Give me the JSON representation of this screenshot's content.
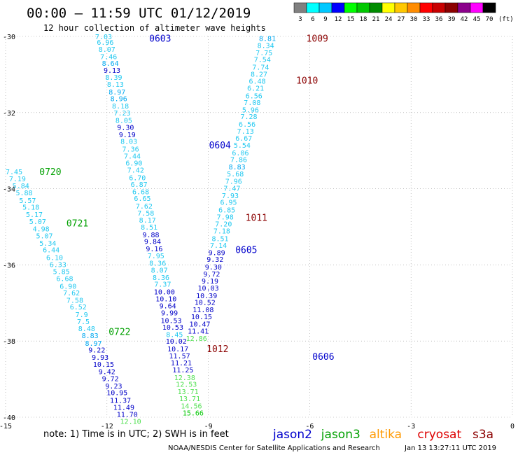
{
  "header": {
    "title": "00:00 – 11:59 UTC 01/12/2019",
    "subtitle": "12 hour collection of altimeter wave heights"
  },
  "colorbar": {
    "unit": "(ft)",
    "labels": [
      "3",
      "6",
      "9",
      "12",
      "15",
      "18",
      "21",
      "24",
      "27",
      "30",
      "33",
      "36",
      "39",
      "42",
      "45",
      "70"
    ],
    "colors": [
      "#808080",
      "#00ffff",
      "#00c8ff",
      "#0000ff",
      "#00ff00",
      "#00c800",
      "#008c00",
      "#ffff00",
      "#ffc800",
      "#ff8c00",
      "#ff0000",
      "#c80000",
      "#8b0000",
      "#8b008b",
      "#ff00ff",
      "#000000"
    ]
  },
  "footer": {
    "note": "note:  1) Time is in UTC;  2) SWH is in feet",
    "credit": "NOAA/NESDIS Center for Satellite Applications and Research",
    "timestamp": "Jan 13 13:27:11 UTC 2019",
    "satellites": [
      {
        "name": "jason2",
        "color": "#0000cc"
      },
      {
        "name": "jason3",
        "color": "#00a000"
      },
      {
        "name": "altika",
        "color": "#ff9900"
      },
      {
        "name": "cryosat",
        "color": "#dd0000"
      },
      {
        "name": "s3a",
        "color": "#8b0000"
      }
    ]
  },
  "chart_data": {
    "type": "scatter",
    "xlim": [
      -15,
      0
    ],
    "ylim": [
      -40,
      -30
    ],
    "x_ticks": [
      "-15",
      "-12",
      "-9",
      "-6",
      "-3",
      "0"
    ],
    "y_ticks": [
      "-30",
      "-32",
      "-34",
      "-36",
      "-38",
      "-40"
    ],
    "grid": true,
    "unit": "ft",
    "tracks": [
      {
        "satellite": "jason2",
        "color": "#0000cc",
        "time_labels": [
          {
            "text": "0603",
            "lon": -10.75,
            "lat": -30.05
          },
          {
            "text": "0604",
            "lon": -8.98,
            "lat": -32.85
          },
          {
            "text": "0605",
            "lon": -8.2,
            "lat": -35.6
          },
          {
            "text": "0606",
            "lon": -5.92,
            "lat": -38.4
          }
        ],
        "points": [
          {
            "lon": -12.1,
            "lat": -30.0,
            "value": "7.03"
          },
          {
            "lon": -12.05,
            "lat": -30.15,
            "value": "6.96"
          },
          {
            "lon": -12.0,
            "lat": -30.33,
            "value": "8.07"
          },
          {
            "lon": -11.95,
            "lat": -30.52,
            "value": "7.46"
          },
          {
            "lon": -11.9,
            "lat": -30.7,
            "value": "8.64"
          },
          {
            "lon": -11.85,
            "lat": -30.88,
            "value": "9.13"
          },
          {
            "lon": -11.8,
            "lat": -31.07,
            "value": "8.39"
          },
          {
            "lon": -11.75,
            "lat": -31.25,
            "value": "8.13"
          },
          {
            "lon": -11.7,
            "lat": -31.45,
            "value": "8.97"
          },
          {
            "lon": -11.65,
            "lat": -31.63,
            "value": "8.96"
          },
          {
            "lon": -11.6,
            "lat": -31.82,
            "value": "8.18"
          },
          {
            "lon": -11.55,
            "lat": -32.0,
            "value": "7.23"
          },
          {
            "lon": -11.5,
            "lat": -32.2,
            "value": "8.05"
          },
          {
            "lon": -11.45,
            "lat": -32.38,
            "value": "9.30"
          },
          {
            "lon": -11.4,
            "lat": -32.57,
            "value": "9.19"
          },
          {
            "lon": -11.35,
            "lat": -32.75,
            "value": "8.03"
          },
          {
            "lon": -11.3,
            "lat": -32.95,
            "value": "7.36"
          },
          {
            "lon": -11.25,
            "lat": -33.13,
            "value": "7.44"
          },
          {
            "lon": -11.2,
            "lat": -33.32,
            "value": "6.90"
          },
          {
            "lon": -11.15,
            "lat": -33.5,
            "value": "7.42"
          },
          {
            "lon": -11.1,
            "lat": -33.7,
            "value": "6.70"
          },
          {
            "lon": -11.05,
            "lat": -33.88,
            "value": "6.87"
          },
          {
            "lon": -11.0,
            "lat": -34.07,
            "value": "6.68"
          },
          {
            "lon": -10.95,
            "lat": -34.25,
            "value": "6.65"
          },
          {
            "lon": -10.9,
            "lat": -34.45,
            "value": "7.62"
          },
          {
            "lon": -10.85,
            "lat": -34.63,
            "value": "7.58"
          },
          {
            "lon": -10.8,
            "lat": -34.82,
            "value": "8.17"
          },
          {
            "lon": -10.75,
            "lat": -35.0,
            "value": "8.51"
          },
          {
            "lon": -10.7,
            "lat": -35.2,
            "value": "9.88"
          },
          {
            "lon": -10.65,
            "lat": -35.38,
            "value": "9.84"
          },
          {
            "lon": -10.6,
            "lat": -35.57,
            "value": "9.16"
          },
          {
            "lon": -10.55,
            "lat": -35.75,
            "value": "7.95"
          },
          {
            "lon": -10.5,
            "lat": -35.95,
            "value": "8.36"
          },
          {
            "lon": -10.45,
            "lat": -36.13,
            "value": "8.07"
          },
          {
            "lon": -10.4,
            "lat": -36.32,
            "value": "8.36"
          },
          {
            "lon": -10.35,
            "lat": -36.5,
            "value": "7.37"
          },
          {
            "lon": -10.3,
            "lat": -36.7,
            "value": "10.00"
          },
          {
            "lon": -10.25,
            "lat": -36.88,
            "value": "10.10"
          },
          {
            "lon": -10.2,
            "lat": -37.07,
            "value": "9.64"
          },
          {
            "lon": -10.15,
            "lat": -37.25,
            "value": "9.99"
          },
          {
            "lon": -10.1,
            "lat": -37.45,
            "value": "10.53"
          },
          {
            "lon": -10.05,
            "lat": -37.63,
            "value": "10.53"
          },
          {
            "lon": -10.0,
            "lat": -37.82,
            "value": "8.45"
          },
          {
            "lon": -9.95,
            "lat": -38.0,
            "value": "10.02"
          },
          {
            "lon": -9.9,
            "lat": -38.2,
            "value": "10.17"
          },
          {
            "lon": -9.85,
            "lat": -38.38,
            "value": "11.57"
          },
          {
            "lon": -9.8,
            "lat": -38.57,
            "value": "11.21"
          },
          {
            "lon": -9.75,
            "lat": -38.75,
            "value": "11.25"
          },
          {
            "lon": -9.7,
            "lat": -38.95,
            "value": "12.38"
          },
          {
            "lon": -9.65,
            "lat": -39.13,
            "value": "12.53"
          },
          {
            "lon": -9.6,
            "lat": -39.32,
            "value": "13.71"
          },
          {
            "lon": -9.55,
            "lat": -39.5,
            "value": "13.71"
          },
          {
            "lon": -9.5,
            "lat": -39.7,
            "value": "14.56"
          },
          {
            "lon": -9.45,
            "lat": -39.88,
            "value": "15.66"
          }
        ]
      },
      {
        "satellite": "jason3",
        "color": "#00a000",
        "time_labels": [
          {
            "text": "0720",
            "lon": -14.0,
            "lat": -33.55
          },
          {
            "text": "0721",
            "lon": -13.2,
            "lat": -34.9
          },
          {
            "text": "0722",
            "lon": -11.95,
            "lat": -37.75
          }
        ],
        "points": [
          {
            "lon": -14.75,
            "lat": -33.55,
            "value": "7.45"
          },
          {
            "lon": -14.65,
            "lat": -33.73,
            "value": "7.19"
          },
          {
            "lon": -14.55,
            "lat": -33.92,
            "value": "5.84"
          },
          {
            "lon": -14.45,
            "lat": -34.1,
            "value": "5.88"
          },
          {
            "lon": -14.35,
            "lat": -34.3,
            "value": "5.57"
          },
          {
            "lon": -14.25,
            "lat": -34.48,
            "value": "5.18"
          },
          {
            "lon": -14.15,
            "lat": -34.67,
            "value": "5.17"
          },
          {
            "lon": -14.05,
            "lat": -34.85,
            "value": "5.07"
          },
          {
            "lon": -13.95,
            "lat": -35.05,
            "value": "4.98"
          },
          {
            "lon": -13.85,
            "lat": -35.23,
            "value": "5.07"
          },
          {
            "lon": -13.75,
            "lat": -35.42,
            "value": "5.34"
          },
          {
            "lon": -13.65,
            "lat": -35.6,
            "value": "6.44"
          },
          {
            "lon": -13.55,
            "lat": -35.8,
            "value": "6.10"
          },
          {
            "lon": -13.45,
            "lat": -35.98,
            "value": "6.33"
          },
          {
            "lon": -13.35,
            "lat": -36.17,
            "value": "5.85"
          },
          {
            "lon": -13.25,
            "lat": -36.35,
            "value": "6.68"
          },
          {
            "lon": -13.15,
            "lat": -36.55,
            "value": "6.90"
          },
          {
            "lon": -13.05,
            "lat": -36.73,
            "value": "7.62"
          },
          {
            "lon": -12.95,
            "lat": -36.92,
            "value": "7.58"
          },
          {
            "lon": -12.85,
            "lat": -37.1,
            "value": "6.52"
          },
          {
            "lon": -12.75,
            "lat": -37.3,
            "value": "7.9"
          },
          {
            "lon": -12.7,
            "lat": -37.48,
            "value": "7.5"
          },
          {
            "lon": -12.6,
            "lat": -37.67,
            "value": "8.48"
          },
          {
            "lon": -12.5,
            "lat": -37.85,
            "value": "8.83"
          },
          {
            "lon": -12.4,
            "lat": -38.05,
            "value": "8.97"
          },
          {
            "lon": -12.3,
            "lat": -38.23,
            "value": "9.22"
          },
          {
            "lon": -12.2,
            "lat": -38.42,
            "value": "9.93"
          },
          {
            "lon": -12.1,
            "lat": -38.6,
            "value": "10.15"
          },
          {
            "lon": -12.0,
            "lat": -38.8,
            "value": "9.42"
          },
          {
            "lon": -11.9,
            "lat": -38.98,
            "value": "9.72"
          },
          {
            "lon": -11.8,
            "lat": -39.17,
            "value": "9.23"
          },
          {
            "lon": -11.7,
            "lat": -39.35,
            "value": "10.95"
          },
          {
            "lon": -11.6,
            "lat": -39.55,
            "value": "11.37"
          },
          {
            "lon": -11.5,
            "lat": -39.73,
            "value": "11.49"
          },
          {
            "lon": -11.4,
            "lat": -39.92,
            "value": "11.70"
          },
          {
            "lon": -11.3,
            "lat": -40.1,
            "value": "12.10"
          }
        ]
      },
      {
        "satellite": "s3a",
        "color": "#8b0000",
        "time_labels": [
          {
            "text": "1009",
            "lon": -6.1,
            "lat": -30.05
          },
          {
            "text": "1010",
            "lon": -6.4,
            "lat": -31.15
          },
          {
            "text": "1011",
            "lon": -7.9,
            "lat": -34.75
          },
          {
            "text": "1012",
            "lon": -9.05,
            "lat": -38.2
          }
        ],
        "points": [
          {
            "lon": -7.25,
            "lat": -30.05,
            "value": "8.81"
          },
          {
            "lon": -7.3,
            "lat": -30.23,
            "value": "8.34"
          },
          {
            "lon": -7.35,
            "lat": -30.42,
            "value": "7.75"
          },
          {
            "lon": -7.4,
            "lat": -30.6,
            "value": "7.54"
          },
          {
            "lon": -7.45,
            "lat": -30.8,
            "value": "7.74"
          },
          {
            "lon": -7.5,
            "lat": -30.98,
            "value": "8.27"
          },
          {
            "lon": -7.55,
            "lat": -31.17,
            "value": "6.48"
          },
          {
            "lon": -7.6,
            "lat": -31.35,
            "value": "6.21"
          },
          {
            "lon": -7.65,
            "lat": -31.55,
            "value": "6.56"
          },
          {
            "lon": -7.7,
            "lat": -31.73,
            "value": "7.08"
          },
          {
            "lon": -7.75,
            "lat": -31.92,
            "value": "5.96"
          },
          {
            "lon": -7.8,
            "lat": -32.1,
            "value": "7.28"
          },
          {
            "lon": -7.85,
            "lat": -32.3,
            "value": "6.56"
          },
          {
            "lon": -7.9,
            "lat": -32.48,
            "value": "7.13"
          },
          {
            "lon": -7.95,
            "lat": -32.67,
            "value": "6.67"
          },
          {
            "lon": -8.0,
            "lat": -32.85,
            "value": "5.54"
          },
          {
            "lon": -8.05,
            "lat": -33.05,
            "value": "6.06"
          },
          {
            "lon": -8.1,
            "lat": -33.23,
            "value": "7.86"
          },
          {
            "lon": -8.15,
            "lat": -33.42,
            "value": "8.83"
          },
          {
            "lon": -8.2,
            "lat": -33.6,
            "value": "5.68"
          },
          {
            "lon": -8.25,
            "lat": -33.8,
            "value": "7.96"
          },
          {
            "lon": -8.3,
            "lat": -33.98,
            "value": "7.47"
          },
          {
            "lon": -8.35,
            "lat": -34.17,
            "value": "7.93"
          },
          {
            "lon": -8.4,
            "lat": -34.35,
            "value": "6.95"
          },
          {
            "lon": -8.45,
            "lat": -34.55,
            "value": "6.85"
          },
          {
            "lon": -8.5,
            "lat": -34.73,
            "value": "7.98"
          },
          {
            "lon": -8.55,
            "lat": -34.92,
            "value": "7.20"
          },
          {
            "lon": -8.6,
            "lat": -35.1,
            "value": "7.18"
          },
          {
            "lon": -8.65,
            "lat": -35.3,
            "value": "8.51"
          },
          {
            "lon": -8.7,
            "lat": -35.48,
            "value": "7.14"
          },
          {
            "lon": -8.75,
            "lat": -35.67,
            "value": "9.89"
          },
          {
            "lon": -8.8,
            "lat": -35.85,
            "value": "9.32"
          },
          {
            "lon": -8.85,
            "lat": -36.05,
            "value": "9.30"
          },
          {
            "lon": -8.9,
            "lat": -36.23,
            "value": "9.72"
          },
          {
            "lon": -8.95,
            "lat": -36.42,
            "value": "9.19"
          },
          {
            "lon": -9.0,
            "lat": -36.6,
            "value": "10.03"
          },
          {
            "lon": -9.05,
            "lat": -36.8,
            "value": "10.39"
          },
          {
            "lon": -9.1,
            "lat": -36.98,
            "value": "10.52"
          },
          {
            "lon": -9.15,
            "lat": -37.17,
            "value": "11.08"
          },
          {
            "lon": -9.2,
            "lat": -37.35,
            "value": "10.15"
          },
          {
            "lon": -9.25,
            "lat": -37.55,
            "value": "10.47"
          },
          {
            "lon": -9.3,
            "lat": -37.73,
            "value": "11.41"
          },
          {
            "lon": -9.35,
            "lat": -37.92,
            "value": "12.86"
          }
        ]
      }
    ]
  }
}
